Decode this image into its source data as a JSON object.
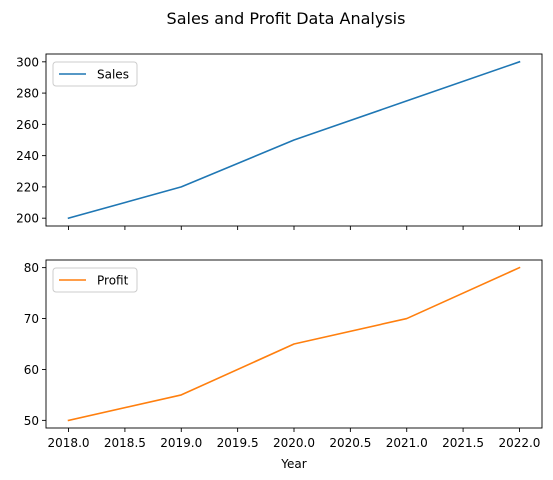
{
  "figure": {
    "title": "Sales and Profit Data Analysis"
  },
  "chart_data": [
    {
      "type": "line",
      "x": [
        2018,
        2019,
        2020,
        2021,
        2022
      ],
      "series": [
        {
          "name": "Sales",
          "values": [
            200,
            220,
            250,
            275,
            300
          ],
          "color": "#1f77b4"
        }
      ],
      "xlabel": "",
      "ylabel": "",
      "xlim": [
        2017.8,
        2022.2
      ],
      "ylim": [
        195,
        305
      ],
      "xticks": [
        2018.0,
        2018.5,
        2019.0,
        2019.5,
        2020.0,
        2020.5,
        2021.0,
        2021.5,
        2022.0
      ],
      "xtick_labels_visible": false,
      "yticks": [
        200,
        220,
        240,
        260,
        280,
        300
      ],
      "ytick_labels": [
        "200",
        "220",
        "240",
        "260",
        "280",
        "300"
      ],
      "legend": "upper-left",
      "grid": false
    },
    {
      "type": "line",
      "x": [
        2018,
        2019,
        2020,
        2021,
        2022
      ],
      "series": [
        {
          "name": "Profit",
          "values": [
            50,
            55,
            65,
            70,
            80
          ],
          "color": "#ff7f0e"
        }
      ],
      "xlabel": "Year",
      "ylabel": "",
      "xlim": [
        2017.8,
        2022.2
      ],
      "ylim": [
        48.5,
        81.5
      ],
      "xticks": [
        2018.0,
        2018.5,
        2019.0,
        2019.5,
        2020.0,
        2020.5,
        2021.0,
        2021.5,
        2022.0
      ],
      "xtick_labels": [
        "2018.0",
        "2018.5",
        "2019.0",
        "2019.5",
        "2020.0",
        "2020.5",
        "2021.0",
        "2021.5",
        "2022.0"
      ],
      "xtick_labels_visible": true,
      "yticks": [
        50,
        60,
        70,
        80
      ],
      "ytick_labels": [
        "50",
        "60",
        "70",
        "80"
      ],
      "legend": "upper-left",
      "grid": false
    }
  ]
}
